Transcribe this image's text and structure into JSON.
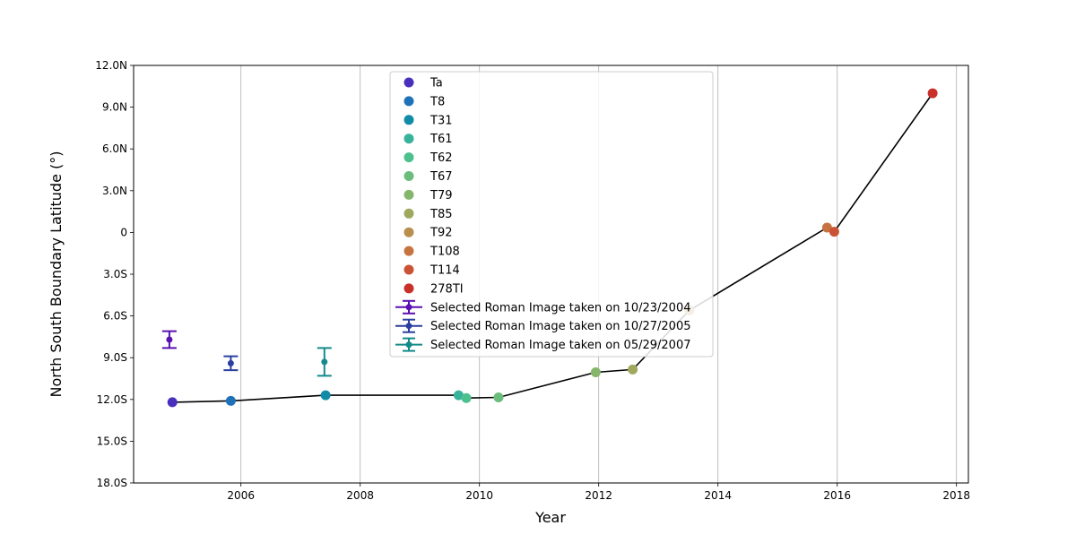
{
  "chart_data": {
    "type": "scatter",
    "xlabel": "Year",
    "ylabel": "North South Boundary Latitude (°)",
    "xlim": [
      2004.2,
      2018.2
    ],
    "ylim": [
      -18,
      12
    ],
    "x_ticks": [
      2006,
      2008,
      2010,
      2012,
      2014,
      2016,
      2018
    ],
    "x_tick_labels": [
      "2006",
      "2008",
      "2010",
      "2012",
      "2014",
      "2016",
      "2018"
    ],
    "y_ticks": [
      12,
      9,
      6,
      3,
      0,
      -3,
      -6,
      -9,
      -12,
      -15,
      -18
    ],
    "y_tick_labels": [
      "12.0N",
      "9.0N",
      "6.0N",
      "3.0N",
      "0",
      "3.0S",
      "6.0S",
      "9.0S",
      "12.0S",
      "15.0S",
      "18.0S"
    ],
    "grid": "x-only",
    "legend_position": "top-center",
    "series": [
      {
        "name": "Ta",
        "color": "#4a2fbf",
        "x": [
          2004.85
        ],
        "y": [
          -12.2
        ]
      },
      {
        "name": "T8",
        "color": "#1f72b8",
        "x": [
          2005.83
        ],
        "y": [
          -12.1
        ]
      },
      {
        "name": "T31",
        "color": "#118ca8",
        "x": [
          2007.42
        ],
        "y": [
          -11.7
        ]
      },
      {
        "name": "T61",
        "color": "#38b39b",
        "x": [
          2009.65
        ],
        "y": [
          -11.7
        ]
      },
      {
        "name": "T62",
        "color": "#4cc08d",
        "x": [
          2009.78
        ],
        "y": [
          -11.9
        ]
      },
      {
        "name": "T67",
        "color": "#6bbd7b",
        "x": [
          2010.32
        ],
        "y": [
          -11.85
        ]
      },
      {
        "name": "T79",
        "color": "#86b66c",
        "x": [
          2011.95
        ],
        "y": [
          -10.05
        ]
      },
      {
        "name": "T85",
        "color": "#a0a85e",
        "x": [
          2012.57
        ],
        "y": [
          -9.85
        ]
      },
      {
        "name": "T92",
        "color": "#b98f4e",
        "x": [
          2013.52
        ],
        "y": [
          -5.6
        ]
      },
      {
        "name": "T108",
        "color": "#c7733f",
        "x": [
          2015.83
        ],
        "y": [
          0.35
        ]
      },
      {
        "name": "T114",
        "color": "#cb5335",
        "x": [
          2015.95
        ],
        "y": [
          0.05
        ]
      },
      {
        "name": "278TI",
        "color": "#c9302a",
        "x": [
          2017.6
        ],
        "y": [
          10.0
        ]
      }
    ],
    "connecting_line": {
      "color": "#000000"
    },
    "errorbar_series": [
      {
        "name": "Selected Roman Image taken on 10/23/2004",
        "color": "#5a10b0",
        "x": 2004.8,
        "y": -7.7,
        "err": 0.6
      },
      {
        "name": "Selected Roman Image taken on 10/27/2005",
        "color": "#2a3fa0",
        "x": 2005.83,
        "y": -9.4,
        "err": 0.5
      },
      {
        "name": "Selected Roman Image taken on 05/29/2007",
        "color": "#158a8a",
        "x": 2007.4,
        "y": -9.3,
        "err": 1.0
      }
    ]
  }
}
